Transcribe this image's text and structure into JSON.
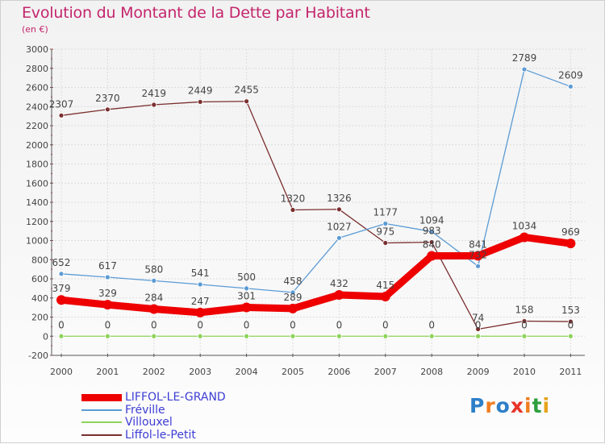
{
  "chart": {
    "title": "Evolution du Montant de la Dette par Habitant",
    "unit": "(en €)"
  },
  "colors": {
    "title": "#c4256c",
    "legend_text": "#3d3dd4",
    "grid": "#dcdcdc",
    "axis": "#555555"
  },
  "brand": {
    "letters": [
      "P",
      "r",
      "o",
      "x",
      "i",
      "t",
      "i"
    ],
    "colors": [
      "#2d7fc8",
      "#f07d1f",
      "#2d7fc8",
      "#e83428",
      "#f07d1f",
      "#2d9f3c",
      "#e8a21c"
    ]
  },
  "chart_data": {
    "type": "line",
    "x": [
      "2000",
      "2001",
      "2002",
      "2003",
      "2004",
      "2005",
      "2006",
      "2007",
      "2008",
      "2009",
      "2010",
      "2011"
    ],
    "ylim": [
      -200,
      3000
    ],
    "yticks": [
      -200,
      0,
      200,
      400,
      600,
      800,
      1000,
      1200,
      1400,
      1600,
      1800,
      2000,
      2200,
      2400,
      2600,
      2800,
      3000
    ],
    "grid": true,
    "legend_position": "bottom-left",
    "series": [
      {
        "name": "LIFFOL-LE-GRAND",
        "color": "#ee0000",
        "values": [
          379,
          329,
          284,
          247,
          301,
          289,
          432,
          415,
          840,
          841,
          1034,
          969
        ],
        "labels": [
          "379",
          "329",
          "284",
          "247",
          "301",
          "289",
          "432",
          "415",
          "840",
          "841",
          "1034",
          "969"
        ]
      },
      {
        "name": "Fréville",
        "color": "#5b9bd5",
        "values": [
          652,
          617,
          580,
          541,
          500,
          458,
          1027,
          1177,
          1094,
          732,
          2789,
          2609
        ],
        "labels": [
          "652",
          "617",
          "580",
          "541",
          "500",
          "458",
          "1027",
          "1177",
          "1094",
          "732",
          "2789",
          "2609"
        ]
      },
      {
        "name": "Villouxel",
        "color": "#8ed35a",
        "values": [
          0,
          0,
          0,
          0,
          0,
          0,
          0,
          0,
          0,
          0,
          0,
          0
        ],
        "labels": [
          "0",
          "0",
          "0",
          "0",
          "0",
          "0",
          "0",
          "0",
          "0",
          "0",
          "0",
          "0"
        ]
      },
      {
        "name": "Liffol-le-Petit",
        "color": "#7b2e2e",
        "values": [
          2307,
          2370,
          2419,
          2449,
          2455,
          1320,
          1326,
          975,
          983,
          74,
          158,
          153
        ],
        "labels": [
          "2307",
          "2370",
          "2419",
          "2449",
          "2455",
          "1320",
          "1326",
          "975",
          "983",
          "74",
          "158",
          "153"
        ]
      }
    ]
  }
}
